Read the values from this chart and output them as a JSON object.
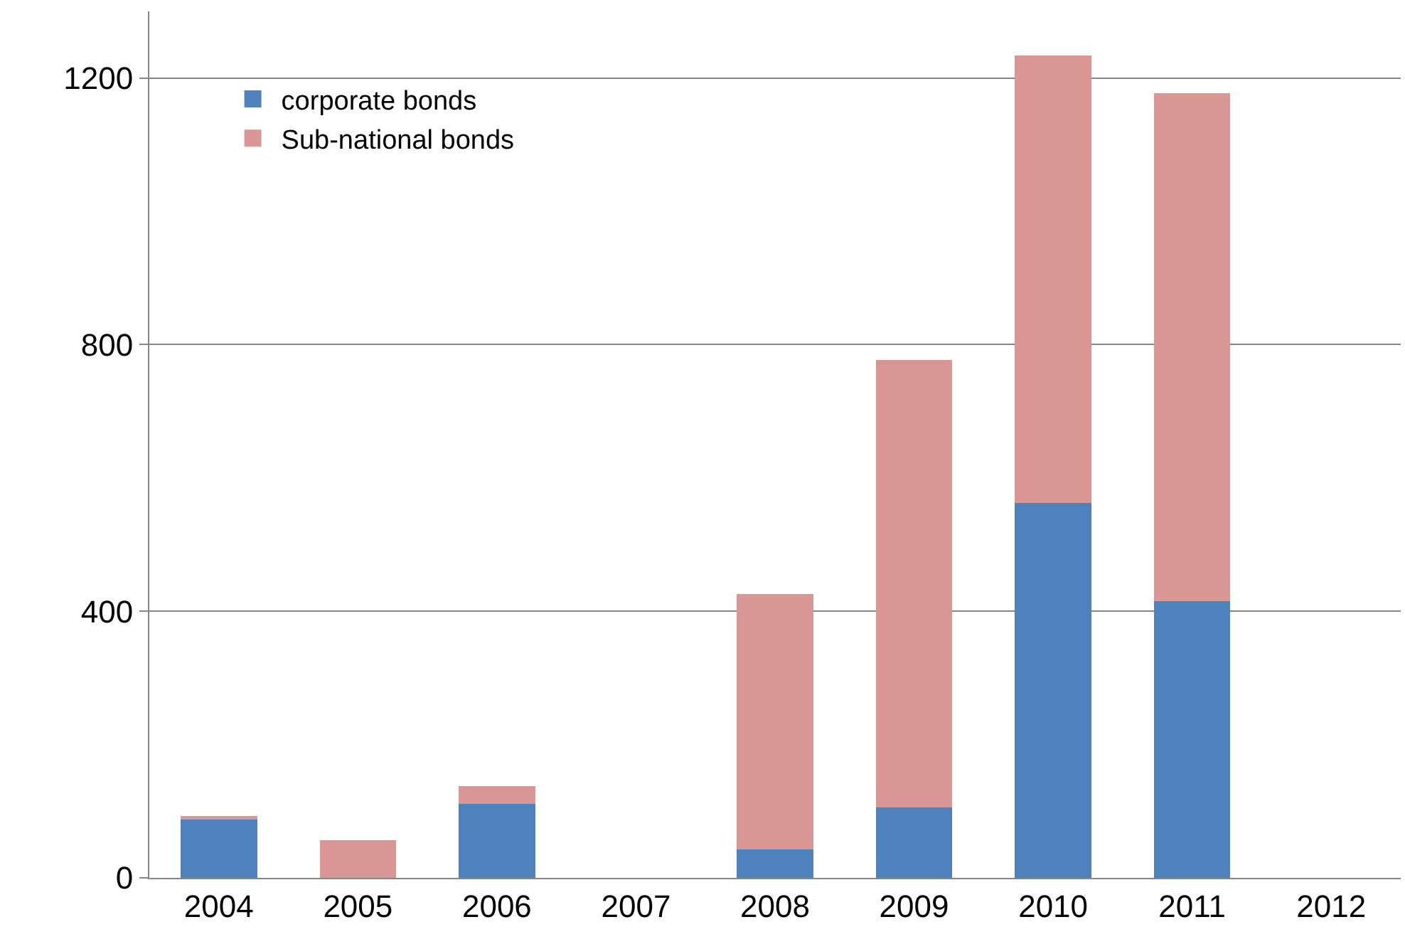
{
  "chart_data": {
    "type": "bar",
    "stacked": true,
    "categories": [
      "2004",
      "2005",
      "2006",
      "2007",
      "2008",
      "2009",
      "2010",
      "2011",
      "2012"
    ],
    "series": [
      {
        "name": "corporate bonds",
        "color": "#4f81bd",
        "values": [
          89,
          0,
          111,
          0,
          43,
          106,
          562,
          415,
          0
        ]
      },
      {
        "name": "Sub-national bonds",
        "color": "#d99694",
        "values": [
          4,
          57,
          27,
          0,
          383,
          671,
          672,
          762,
          0
        ]
      }
    ],
    "ylim": [
      0,
      1300
    ],
    "yticks": [
      0,
      400,
      800,
      1200
    ],
    "grid": "y",
    "legend": "top left"
  }
}
